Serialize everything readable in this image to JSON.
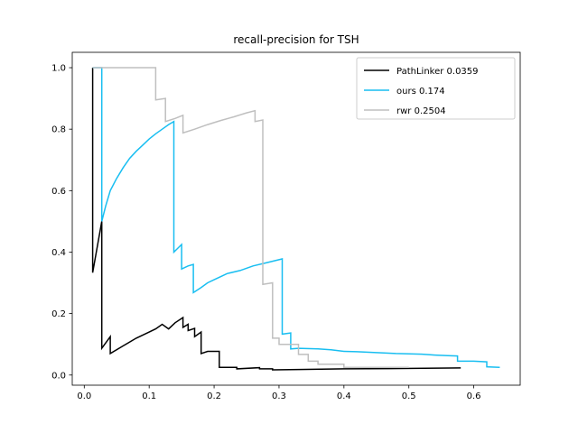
{
  "chart_data": {
    "type": "line",
    "title": "recall-precision for TSH",
    "xlabel": "",
    "ylabel": "",
    "xlim": [
      -0.0185,
      0.6715
    ],
    "ylim": [
      -0.033,
      1.05
    ],
    "xticks": [
      0.0,
      0.1,
      0.2,
      0.3,
      0.4,
      0.5,
      0.6
    ],
    "yticks": [
      0.0,
      0.2,
      0.4,
      0.6,
      0.8,
      1.0
    ],
    "legend_position": "top-right",
    "grid": false,
    "series": [
      {
        "name": "PathLinker 0.0359",
        "color": "#000000",
        "points": [
          [
            0.013,
            1.0
          ],
          [
            0.013,
            0.333
          ],
          [
            0.027,
            0.5
          ],
          [
            0.027,
            0.087
          ],
          [
            0.04,
            0.125
          ],
          [
            0.04,
            0.07
          ],
          [
            0.06,
            0.095
          ],
          [
            0.08,
            0.12
          ],
          [
            0.1,
            0.14
          ],
          [
            0.11,
            0.15
          ],
          [
            0.12,
            0.165
          ],
          [
            0.13,
            0.15
          ],
          [
            0.14,
            0.17
          ],
          [
            0.152,
            0.187
          ],
          [
            0.152,
            0.155
          ],
          [
            0.16,
            0.165
          ],
          [
            0.16,
            0.145
          ],
          [
            0.17,
            0.152
          ],
          [
            0.17,
            0.125
          ],
          [
            0.18,
            0.14
          ],
          [
            0.18,
            0.07
          ],
          [
            0.19,
            0.077
          ],
          [
            0.208,
            0.077
          ],
          [
            0.208,
            0.025
          ],
          [
            0.235,
            0.025
          ],
          [
            0.235,
            0.02
          ],
          [
            0.27,
            0.024
          ],
          [
            0.27,
            0.02
          ],
          [
            0.29,
            0.02
          ],
          [
            0.29,
            0.017
          ],
          [
            0.33,
            0.018
          ],
          [
            0.4,
            0.02
          ],
          [
            0.47,
            0.021
          ],
          [
            0.58,
            0.023
          ]
        ]
      },
      {
        "name": "ours 0.174",
        "color": "#18BEF1",
        "points": [
          [
            0.013,
            1.0
          ],
          [
            0.027,
            1.0
          ],
          [
            0.027,
            0.5
          ],
          [
            0.033,
            0.55
          ],
          [
            0.04,
            0.6
          ],
          [
            0.05,
            0.64
          ],
          [
            0.06,
            0.675
          ],
          [
            0.07,
            0.705
          ],
          [
            0.08,
            0.728
          ],
          [
            0.09,
            0.748
          ],
          [
            0.1,
            0.768
          ],
          [
            0.11,
            0.785
          ],
          [
            0.12,
            0.8
          ],
          [
            0.13,
            0.815
          ],
          [
            0.138,
            0.825
          ],
          [
            0.138,
            0.4
          ],
          [
            0.15,
            0.425
          ],
          [
            0.15,
            0.345
          ],
          [
            0.16,
            0.355
          ],
          [
            0.168,
            0.36
          ],
          [
            0.168,
            0.268
          ],
          [
            0.18,
            0.285
          ],
          [
            0.19,
            0.3
          ],
          [
            0.2,
            0.31
          ],
          [
            0.21,
            0.32
          ],
          [
            0.22,
            0.33
          ],
          [
            0.24,
            0.34
          ],
          [
            0.26,
            0.355
          ],
          [
            0.28,
            0.365
          ],
          [
            0.305,
            0.378
          ],
          [
            0.305,
            0.133
          ],
          [
            0.318,
            0.137
          ],
          [
            0.318,
            0.085
          ],
          [
            0.33,
            0.087
          ],
          [
            0.36,
            0.085
          ],
          [
            0.38,
            0.082
          ],
          [
            0.4,
            0.077
          ],
          [
            0.42,
            0.076
          ],
          [
            0.45,
            0.073
          ],
          [
            0.48,
            0.07
          ],
          [
            0.5,
            0.069
          ],
          [
            0.52,
            0.068
          ],
          [
            0.54,
            0.065
          ],
          [
            0.56,
            0.063
          ],
          [
            0.575,
            0.062
          ],
          [
            0.575,
            0.045
          ],
          [
            0.6,
            0.045
          ],
          [
            0.62,
            0.043
          ],
          [
            0.62,
            0.027
          ],
          [
            0.64,
            0.025
          ]
        ]
      },
      {
        "name": "rwr 0.2504",
        "color": "#BFBFBF",
        "points": [
          [
            0.013,
            1.0
          ],
          [
            0.11,
            1.0
          ],
          [
            0.11,
            0.895
          ],
          [
            0.125,
            0.9
          ],
          [
            0.125,
            0.825
          ],
          [
            0.14,
            0.835
          ],
          [
            0.152,
            0.845
          ],
          [
            0.152,
            0.788
          ],
          [
            0.17,
            0.8
          ],
          [
            0.19,
            0.815
          ],
          [
            0.21,
            0.828
          ],
          [
            0.23,
            0.84
          ],
          [
            0.25,
            0.853
          ],
          [
            0.263,
            0.86
          ],
          [
            0.263,
            0.825
          ],
          [
            0.275,
            0.83
          ],
          [
            0.275,
            0.295
          ],
          [
            0.29,
            0.3
          ],
          [
            0.29,
            0.12
          ],
          [
            0.3,
            0.12
          ],
          [
            0.3,
            0.1
          ],
          [
            0.33,
            0.1
          ],
          [
            0.33,
            0.067
          ],
          [
            0.345,
            0.067
          ],
          [
            0.345,
            0.045
          ],
          [
            0.36,
            0.045
          ],
          [
            0.36,
            0.035
          ],
          [
            0.4,
            0.035
          ],
          [
            0.4,
            0.025
          ],
          [
            0.5,
            0.025
          ]
        ]
      }
    ]
  }
}
